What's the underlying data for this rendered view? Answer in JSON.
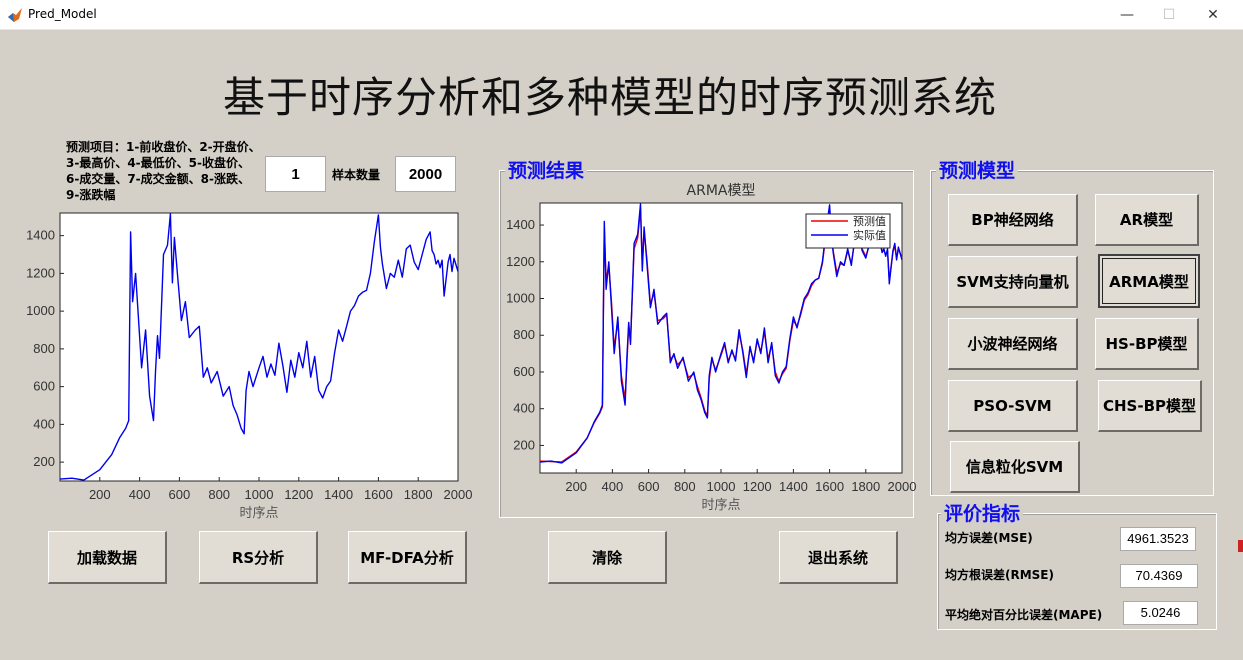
{
  "window": {
    "title": "Pred_Model",
    "controls": {
      "minimize": "—",
      "maximize": "☐",
      "close": "✕"
    }
  },
  "page_title": "基于时序分析和多种模型的时序预测系统",
  "input": {
    "item_description": "预测项目：1-前收盘价、2-开盘价、3-最高价、4-最低价、5-收盘价、6-成交量、7-成交金额、8-涨跌、9-涨跌幅",
    "item_value": "1",
    "sample_label": "样本数量",
    "sample_value": "2000"
  },
  "left_chart": {
    "xlabel": "时序点",
    "xticks": [
      "200",
      "400",
      "600",
      "800",
      "1000",
      "1200",
      "1400",
      "1600",
      "1800",
      "2000"
    ],
    "yticks": [
      "200",
      "400",
      "600",
      "800",
      "1000",
      "1200",
      "1400"
    ]
  },
  "result_panel": {
    "title": "预测结果",
    "chart_title": "ARMA模型",
    "xlabel": "时序点",
    "xticks": [
      "200",
      "400",
      "600",
      "800",
      "1000",
      "1200",
      "1400",
      "1600",
      "1800",
      "2000"
    ],
    "yticks": [
      "200",
      "400",
      "600",
      "800",
      "1000",
      "1200",
      "1400"
    ],
    "legend": [
      "预测值",
      "实际值"
    ]
  },
  "model_panel": {
    "title": "预测模型",
    "buttons": [
      "BP神经网络",
      "AR模型",
      "SVM支持向量机",
      "ARMA模型",
      "小波神经网络",
      "HS-BP模型",
      "PSO-SVM",
      "CHS-BP模型",
      "信息粒化SVM"
    ],
    "active": "ARMA模型"
  },
  "metrics_panel": {
    "title": "评价指标",
    "mse_label": "均方误差(MSE)",
    "mse_value": "4961.3523",
    "rmse_label": "均方根误差(RMSE)",
    "rmse_value": "70.4369",
    "mape_label": "平均绝对百分比误差(MAPE)",
    "mape_value": "5.0246"
  },
  "bottom_buttons": {
    "load": "加载数据",
    "rs": "RS分析",
    "mfdfa": "MF-DFA分析",
    "clear": "清除",
    "exit": "退出系统"
  },
  "colors": {
    "background": "#d4d0c8",
    "actual_series": "#0000ee",
    "predicted_series": "#ee0000",
    "panel_title": "#1010ee"
  },
  "chart_data": [
    {
      "type": "line",
      "xlabel": "时序点",
      "xlim": [
        0,
        2000
      ],
      "ylim": [
        100,
        1520
      ],
      "series": [
        {
          "x": [
            0,
            60,
            120,
            200,
            260,
            300,
            330,
            345,
            355,
            365,
            380,
            395,
            410,
            430,
            450,
            470,
            480,
            490,
            500,
            520,
            540,
            555,
            565,
            575,
            590,
            610,
            630,
            650,
            680,
            700,
            720,
            740,
            760,
            790,
            820,
            850,
            870,
            890,
            910,
            925,
            935,
            950,
            970,
            1000,
            1020,
            1040,
            1060,
            1080,
            1100,
            1120,
            1140,
            1160,
            1180,
            1200,
            1220,
            1240,
            1260,
            1280,
            1300,
            1320,
            1340,
            1360,
            1380,
            1400,
            1420,
            1440,
            1460,
            1480,
            1500,
            1520,
            1540,
            1560,
            1580,
            1600,
            1610,
            1620,
            1640,
            1660,
            1680,
            1700,
            1720,
            1740,
            1760,
            1780,
            1800,
            1820,
            1840,
            1860,
            1870,
            1880,
            1890,
            1900,
            1910,
            1920,
            1930,
            1950,
            1960,
            1970,
            1980,
            2000
          ],
          "y": [
            110,
            115,
            105,
            160,
            240,
            330,
            380,
            420,
            1420,
            1050,
            1200,
            950,
            700,
            900,
            550,
            420,
            680,
            870,
            750,
            1300,
            1350,
            1515,
            1150,
            1390,
            1200,
            950,
            1050,
            860,
            900,
            920,
            650,
            700,
            620,
            680,
            550,
            600,
            500,
            450,
            380,
            350,
            580,
            680,
            600,
            700,
            760,
            650,
            720,
            660,
            830,
            710,
            570,
            740,
            650,
            780,
            700,
            840,
            650,
            760,
            580,
            540,
            600,
            630,
            780,
            900,
            840,
            920,
            1000,
            1030,
            1080,
            1100,
            1110,
            1200,
            1370,
            1510,
            1340,
            1250,
            1120,
            1200,
            1180,
            1270,
            1180,
            1330,
            1350,
            1260,
            1220,
            1300,
            1380,
            1420,
            1320,
            1300,
            1250,
            1270,
            1230,
            1270,
            1080,
            1260,
            1300,
            1210,
            1280,
            1210
          ],
          "name": "",
          "color": "#0000ee"
        }
      ]
    },
    {
      "type": "line",
      "title": "ARMA模型",
      "xlabel": "时序点",
      "xlim": [
        0,
        2000
      ],
      "ylim": [
        50,
        1520
      ],
      "legend": "top-right",
      "series": [
        {
          "name": "预测值",
          "color": "#ee0000",
          "x": [
            0,
            60,
            120,
            200,
            260,
            300,
            330,
            345,
            355,
            365,
            380,
            395,
            410,
            430,
            450,
            470,
            480,
            490,
            500,
            520,
            540,
            555,
            565,
            575,
            590,
            610,
            630,
            650,
            680,
            700,
            720,
            740,
            760,
            790,
            820,
            850,
            870,
            890,
            910,
            925,
            935,
            950,
            970,
            1000,
            1020,
            1040,
            1060,
            1080,
            1100,
            1120,
            1140,
            1160,
            1180,
            1200,
            1220,
            1240,
            1260,
            1280,
            1300,
            1320,
            1340,
            1360,
            1380,
            1400,
            1420,
            1440,
            1460,
            1480,
            1500,
            1520,
            1540,
            1560,
            1580,
            1600,
            1610,
            1620,
            1640,
            1660,
            1680,
            1700,
            1720,
            1740,
            1760,
            1780,
            1800,
            1820,
            1840,
            1860,
            1870,
            1880,
            1890,
            1900,
            1910,
            1920,
            1930,
            1950,
            1960,
            1970,
            1980,
            2000
          ],
          "y": [
            115,
            112,
            110,
            165,
            240,
            325,
            375,
            410,
            1380,
            1100,
            1180,
            980,
            730,
            880,
            580,
            450,
            650,
            850,
            770,
            1270,
            1330,
            1490,
            1180,
            1370,
            1220,
            970,
            1030,
            880,
            890,
            910,
            670,
            690,
            640,
            670,
            570,
            590,
            520,
            460,
            390,
            360,
            560,
            670,
            610,
            690,
            750,
            660,
            710,
            670,
            810,
            720,
            590,
            730,
            660,
            770,
            710,
            820,
            670,
            750,
            600,
            550,
            590,
            620,
            770,
            880,
            850,
            910,
            990,
            1020,
            1070,
            1100,
            1110,
            1190,
            1350,
            1490,
            1360,
            1260,
            1140,
            1190,
            1180,
            1260,
            1190,
            1320,
            1340,
            1270,
            1230,
            1290,
            1370,
            1410,
            1330,
            1300,
            1260,
            1260,
            1240,
            1260,
            1100,
            1250,
            1290,
            1220,
            1270,
            1220
          ]
        },
        {
          "name": "实际值",
          "color": "#0000ee",
          "x": [
            0,
            60,
            120,
            200,
            260,
            300,
            330,
            345,
            355,
            365,
            380,
            395,
            410,
            430,
            450,
            470,
            480,
            490,
            500,
            520,
            540,
            555,
            565,
            575,
            590,
            610,
            630,
            650,
            680,
            700,
            720,
            740,
            760,
            790,
            820,
            850,
            870,
            890,
            910,
            925,
            935,
            950,
            970,
            1000,
            1020,
            1040,
            1060,
            1080,
            1100,
            1120,
            1140,
            1160,
            1180,
            1200,
            1220,
            1240,
            1260,
            1280,
            1300,
            1320,
            1340,
            1360,
            1380,
            1400,
            1420,
            1440,
            1460,
            1480,
            1500,
            1520,
            1540,
            1560,
            1580,
            1600,
            1610,
            1620,
            1640,
            1660,
            1680,
            1700,
            1720,
            1740,
            1760,
            1780,
            1800,
            1820,
            1840,
            1860,
            1870,
            1880,
            1890,
            1900,
            1910,
            1920,
            1930,
            1950,
            1960,
            1970,
            1980,
            2000
          ],
          "y": [
            110,
            115,
            105,
            160,
            240,
            330,
            380,
            420,
            1420,
            1050,
            1200,
            950,
            700,
            900,
            550,
            420,
            680,
            870,
            750,
            1300,
            1350,
            1515,
            1150,
            1390,
            1200,
            950,
            1050,
            860,
            900,
            920,
            650,
            700,
            620,
            680,
            550,
            600,
            500,
            450,
            380,
            350,
            580,
            680,
            600,
            700,
            760,
            650,
            720,
            660,
            830,
            710,
            570,
            740,
            650,
            780,
            700,
            840,
            650,
            760,
            580,
            540,
            600,
            630,
            780,
            900,
            840,
            920,
            1000,
            1030,
            1080,
            1100,
            1110,
            1200,
            1370,
            1510,
            1340,
            1250,
            1120,
            1200,
            1180,
            1270,
            1180,
            1330,
            1350,
            1260,
            1220,
            1300,
            1380,
            1420,
            1320,
            1300,
            1250,
            1270,
            1230,
            1270,
            1080,
            1260,
            1300,
            1210,
            1280,
            1210
          ]
        }
      ]
    }
  ]
}
